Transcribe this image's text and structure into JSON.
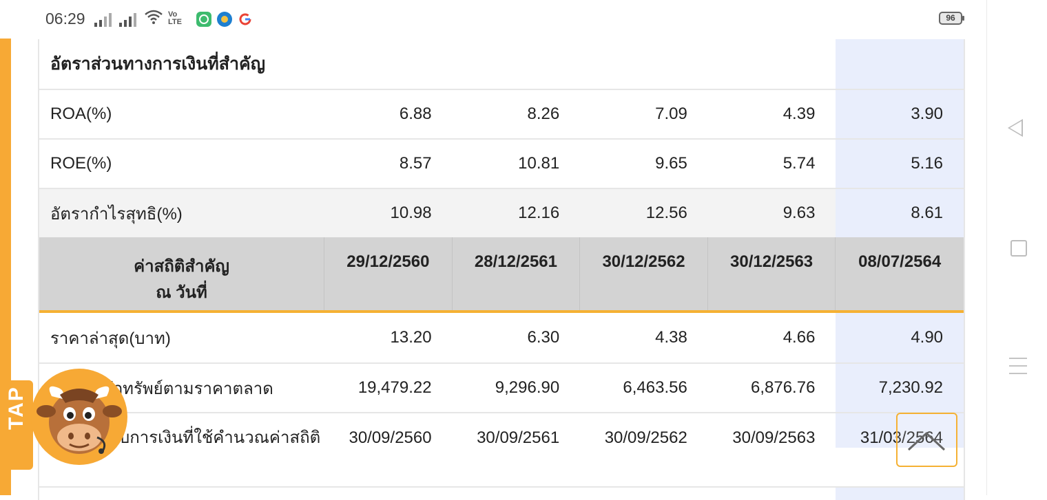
{
  "status_bar": {
    "time": "06:29",
    "volte_line1": "Vo",
    "volte_line2": "LTE",
    "battery": "96"
  },
  "table": {
    "section_title": "อัตราส่วนทางการเงินที่สำคัญ",
    "ratio_rows": [
      {
        "label": "ROA(%)",
        "values": [
          "6.88",
          "8.26",
          "7.09",
          "4.39",
          "3.90"
        ]
      },
      {
        "label": "ROE(%)",
        "values": [
          "8.57",
          "10.81",
          "9.65",
          "5.74",
          "5.16"
        ]
      },
      {
        "label": "อัตรากำไรสุทธิ(%)",
        "values": [
          "10.98",
          "12.16",
          "12.56",
          "9.63",
          "8.61"
        ]
      }
    ],
    "stats_header": {
      "label_line1": "ค่าสถิติสำคัญ",
      "label_line2": "ณ วันที่",
      "dates": [
        "29/12/2560",
        "28/12/2561",
        "30/12/2562",
        "30/12/2563",
        "08/07/2564"
      ]
    },
    "stats_rows": [
      {
        "label": "ราคาล่าสุด(บาท)",
        "values": [
          "13.20",
          "6.30",
          "4.38",
          "4.66",
          "4.90"
        ]
      },
      {
        "label": "มูลค่าหลักทรัพย์ตามราคาตลาด",
        "values": [
          "19,479.22",
          "9,296.90",
          "6,463.56",
          "6,876.76",
          "7,230.92"
        ]
      },
      {
        "label": "วันที่ของงบการเงินที่ใช้คำนวณค่าสถิติ",
        "values": [
          "30/09/2560",
          "30/09/2561",
          "30/09/2562",
          "30/09/2563",
          "31/03/2564"
        ]
      }
    ]
  },
  "floating": {
    "tap_label": "TAP"
  },
  "colors": {
    "accent_orange": "#f7a935",
    "highlight_column": "#e9eefc",
    "header_gray": "#d3d3d3"
  }
}
